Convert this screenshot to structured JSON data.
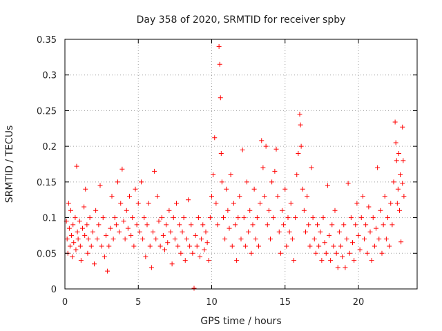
{
  "colors": {
    "series": "#ff0000",
    "axis": "#000000",
    "grid": "#a0a0a0"
  },
  "chart_data": {
    "type": "scatter",
    "title": "Day 358 of 2020, SRMTID for receiver spby",
    "xlabel": "GPS time / hours",
    "ylabel": "SRMTID / TECUs",
    "xlim": [
      0,
      24
    ],
    "ylim": [
      0,
      0.35
    ],
    "xticks": [
      0,
      5,
      10,
      15,
      20
    ],
    "yticks": [
      0,
      0.05,
      0.1,
      0.15,
      0.2,
      0.25,
      0.3,
      0.35
    ],
    "xtick_labels": [
      "0",
      "5",
      "10",
      "15",
      "20"
    ],
    "ytick_labels": [
      "0",
      "0.05",
      "0.1",
      "0.15",
      "0.2",
      "0.25",
      "0.3",
      "0.35"
    ],
    "grid": true,
    "marker": "plus",
    "series": [
      {
        "name": "SRMTID",
        "points": [
          [
            0.1,
            0.095
          ],
          [
            0.15,
            0.07
          ],
          [
            0.2,
            0.05
          ],
          [
            0.25,
            0.12
          ],
          [
            0.3,
            0.085
          ],
          [
            0.35,
            0.06
          ],
          [
            0.4,
            0.11
          ],
          [
            0.45,
            0.075
          ],
          [
            0.5,
            0.045
          ],
          [
            0.55,
            0.09
          ],
          [
            0.6,
            0.065
          ],
          [
            0.7,
            0.1
          ],
          [
            0.75,
            0.055
          ],
          [
            0.8,
            0.172
          ],
          [
            0.85,
            0.08
          ],
          [
            0.9,
            0.07
          ],
          [
            1.0,
            0.095
          ],
          [
            1.05,
            0.06
          ],
          [
            1.1,
            0.04
          ],
          [
            1.2,
            0.085
          ],
          [
            1.3,
            0.115
          ],
          [
            1.35,
            0.075
          ],
          [
            1.4,
            0.14
          ],
          [
            1.5,
            0.09
          ],
          [
            1.55,
            0.05
          ],
          [
            1.6,
            0.07
          ],
          [
            1.7,
            0.1
          ],
          [
            1.8,
            0.06
          ],
          [
            1.9,
            0.08
          ],
          [
            2.0,
            0.035
          ],
          [
            2.1,
            0.11
          ],
          [
            2.2,
            0.07
          ],
          [
            2.3,
            0.09
          ],
          [
            2.4,
            0.145
          ],
          [
            2.5,
            0.06
          ],
          [
            2.6,
            0.1
          ],
          [
            2.7,
            0.045
          ],
          [
            2.8,
            0.075
          ],
          [
            2.9,
            0.025
          ],
          [
            3.0,
            0.06
          ],
          [
            3.1,
            0.085
          ],
          [
            3.2,
            0.13
          ],
          [
            3.3,
            0.07
          ],
          [
            3.4,
            0.1
          ],
          [
            3.5,
            0.09
          ],
          [
            3.6,
            0.15
          ],
          [
            3.7,
            0.08
          ],
          [
            3.8,
            0.12
          ],
          [
            3.9,
            0.168
          ],
          [
            4.0,
            0.095
          ],
          [
            4.1,
            0.07
          ],
          [
            4.2,
            0.11
          ],
          [
            4.3,
            0.085
          ],
          [
            4.4,
            0.13
          ],
          [
            4.5,
            0.075
          ],
          [
            4.6,
            0.1
          ],
          [
            4.7,
            0.06
          ],
          [
            4.8,
            0.14
          ],
          [
            4.9,
            0.09
          ],
          [
            5.0,
            0.12
          ],
          [
            5.1,
            0.08
          ],
          [
            5.2,
            0.15
          ],
          [
            5.3,
            0.07
          ],
          [
            5.4,
            0.1
          ],
          [
            5.5,
            0.045
          ],
          [
            5.6,
            0.09
          ],
          [
            5.7,
            0.12
          ],
          [
            5.8,
            0.06
          ],
          [
            5.9,
            0.03
          ],
          [
            6.0,
            0.08
          ],
          [
            6.1,
            0.165
          ],
          [
            6.2,
            0.07
          ],
          [
            6.3,
            0.13
          ],
          [
            6.4,
            0.095
          ],
          [
            6.5,
            0.06
          ],
          [
            6.6,
            0.1
          ],
          [
            6.7,
            0.075
          ],
          [
            6.8,
            0.055
          ],
          [
            6.9,
            0.09
          ],
          [
            7.0,
            0.065
          ],
          [
            7.1,
            0.11
          ],
          [
            7.2,
            0.08
          ],
          [
            7.3,
            0.035
          ],
          [
            7.4,
            0.1
          ],
          [
            7.5,
            0.07
          ],
          [
            7.6,
            0.12
          ],
          [
            7.7,
            0.06
          ],
          [
            7.8,
            0.09
          ],
          [
            7.9,
            0.05
          ],
          [
            8.0,
            0.08
          ],
          [
            8.1,
            0.1
          ],
          [
            8.2,
            0.04
          ],
          [
            8.3,
            0.07
          ],
          [
            8.4,
            0.125
          ],
          [
            8.5,
            0.06
          ],
          [
            8.6,
            0.09
          ],
          [
            8.7,
            0.05
          ],
          [
            8.8,
            0.001
          ],
          [
            8.9,
            0.075
          ],
          [
            9.0,
            0.06
          ],
          [
            9.1,
            0.1
          ],
          [
            9.2,
            0.045
          ],
          [
            9.3,
            0.07
          ],
          [
            9.4,
            0.09
          ],
          [
            9.5,
            0.055
          ],
          [
            9.6,
            0.08
          ],
          [
            9.7,
            0.065
          ],
          [
            9.8,
            0.04
          ],
          [
            9.9,
            0.1
          ],
          [
            10.0,
            0.13
          ],
          [
            10.1,
            0.16
          ],
          [
            10.2,
            0.212
          ],
          [
            10.3,
            0.12
          ],
          [
            10.4,
            0.09
          ],
          [
            10.5,
            0.34
          ],
          [
            10.55,
            0.315
          ],
          [
            10.6,
            0.268
          ],
          [
            10.65,
            0.19
          ],
          [
            10.7,
            0.15
          ],
          [
            10.8,
            0.1
          ],
          [
            10.9,
            0.07
          ],
          [
            11.0,
            0.14
          ],
          [
            11.1,
            0.11
          ],
          [
            11.2,
            0.085
          ],
          [
            11.3,
            0.16
          ],
          [
            11.4,
            0.06
          ],
          [
            11.5,
            0.12
          ],
          [
            11.6,
            0.09
          ],
          [
            11.7,
            0.04
          ],
          [
            11.8,
            0.1
          ],
          [
            11.9,
            0.13
          ],
          [
            12.0,
            0.07
          ],
          [
            12.1,
            0.195
          ],
          [
            12.2,
            0.1
          ],
          [
            12.3,
            0.06
          ],
          [
            12.4,
            0.15
          ],
          [
            12.5,
            0.08
          ],
          [
            12.6,
            0.11
          ],
          [
            12.7,
            0.05
          ],
          [
            12.8,
            0.09
          ],
          [
            12.9,
            0.14
          ],
          [
            13.0,
            0.07
          ],
          [
            13.1,
            0.1
          ],
          [
            13.2,
            0.06
          ],
          [
            13.3,
            0.12
          ],
          [
            13.4,
            0.208
          ],
          [
            13.5,
            0.17
          ],
          [
            13.6,
            0.13
          ],
          [
            13.7,
            0.2
          ],
          [
            13.8,
            0.09
          ],
          [
            13.9,
            0.11
          ],
          [
            14.0,
            0.07
          ],
          [
            14.1,
            0.15
          ],
          [
            14.2,
            0.1
          ],
          [
            14.3,
            0.165
          ],
          [
            14.4,
            0.196
          ],
          [
            14.5,
            0.13
          ],
          [
            14.6,
            0.08
          ],
          [
            14.7,
            0.05
          ],
          [
            14.8,
            0.11
          ],
          [
            14.9,
            0.09
          ],
          [
            15.0,
            0.14
          ],
          [
            15.1,
            0.06
          ],
          [
            15.2,
            0.1
          ],
          [
            15.3,
            0.08
          ],
          [
            15.4,
            0.12
          ],
          [
            15.5,
            0.07
          ],
          [
            15.6,
            0.04
          ],
          [
            15.7,
            0.1
          ],
          [
            15.8,
            0.16
          ],
          [
            15.9,
            0.19
          ],
          [
            16.0,
            0.245
          ],
          [
            16.05,
            0.23
          ],
          [
            16.1,
            0.2
          ],
          [
            16.2,
            0.14
          ],
          [
            16.3,
            0.11
          ],
          [
            16.4,
            0.08
          ],
          [
            16.5,
            0.13
          ],
          [
            16.6,
            0.09
          ],
          [
            16.7,
            0.06
          ],
          [
            16.8,
            0.17
          ],
          [
            16.9,
            0.1
          ],
          [
            17.0,
            0.07
          ],
          [
            17.1,
            0.05
          ],
          [
            17.2,
            0.09
          ],
          [
            17.3,
            0.06
          ],
          [
            17.4,
            0.08
          ],
          [
            17.5,
            0.04
          ],
          [
            17.6,
            0.1
          ],
          [
            17.7,
            0.065
          ],
          [
            17.8,
            0.05
          ],
          [
            17.9,
            0.145
          ],
          [
            18.0,
            0.075
          ],
          [
            18.1,
            0.04
          ],
          [
            18.2,
            0.09
          ],
          [
            18.3,
            0.06
          ],
          [
            18.4,
            0.11
          ],
          [
            18.5,
            0.05
          ],
          [
            18.6,
            0.03
          ],
          [
            18.7,
            0.08
          ],
          [
            18.8,
            0.06
          ],
          [
            18.9,
            0.045
          ],
          [
            19.0,
            0.09
          ],
          [
            19.1,
            0.03
          ],
          [
            19.2,
            0.07
          ],
          [
            19.3,
            0.148
          ],
          [
            19.4,
            0.05
          ],
          [
            19.5,
            0.1
          ],
          [
            19.6,
            0.065
          ],
          [
            19.7,
            0.04
          ],
          [
            19.8,
            0.09
          ],
          [
            19.9,
            0.12
          ],
          [
            20.0,
            0.075
          ],
          [
            20.1,
            0.055
          ],
          [
            20.2,
            0.1
          ],
          [
            20.3,
            0.13
          ],
          [
            20.4,
            0.07
          ],
          [
            20.5,
            0.09
          ],
          [
            20.6,
            0.05
          ],
          [
            20.7,
            0.115
          ],
          [
            20.8,
            0.08
          ],
          [
            20.9,
            0.04
          ],
          [
            21.0,
            0.1
          ],
          [
            21.1,
            0.06
          ],
          [
            21.2,
            0.085
          ],
          [
            21.3,
            0.17
          ],
          [
            21.4,
            0.07
          ],
          [
            21.5,
            0.11
          ],
          [
            21.6,
            0.05
          ],
          [
            21.7,
            0.09
          ],
          [
            21.8,
            0.13
          ],
          [
            21.9,
            0.07
          ],
          [
            22.0,
            0.1
          ],
          [
            22.1,
            0.06
          ],
          [
            22.2,
            0.12
          ],
          [
            22.3,
            0.09
          ],
          [
            22.4,
            0.15
          ],
          [
            22.5,
            0.234
          ],
          [
            22.55,
            0.205
          ],
          [
            22.6,
            0.18
          ],
          [
            22.7,
            0.14
          ],
          [
            22.8,
            0.11
          ],
          [
            22.9,
            0.066
          ],
          [
            23.0,
            0.227
          ],
          [
            23.05,
            0.18
          ],
          [
            23.1,
            0.13
          ],
          [
            23.0,
            0.148
          ],
          [
            22.75,
            0.19
          ],
          [
            22.85,
            0.16
          ],
          [
            22.65,
            0.12
          ]
        ]
      }
    ]
  }
}
